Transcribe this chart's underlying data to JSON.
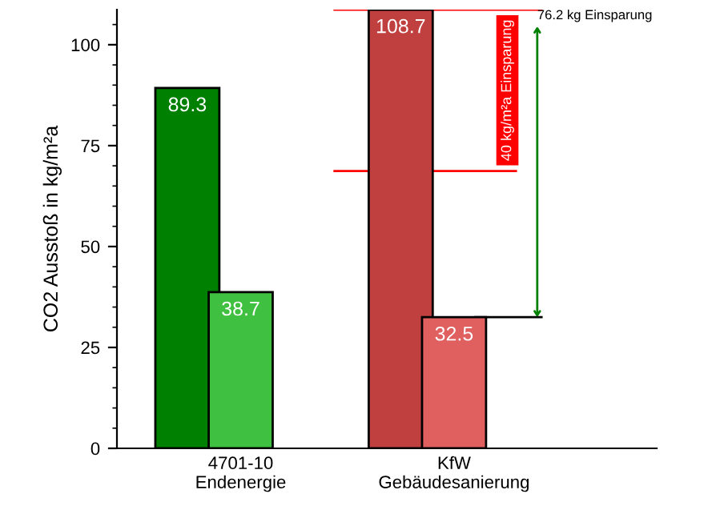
{
  "chart_data": {
    "type": "bar",
    "categories": [
      "4701-10\nEndenergie",
      "KfW\nGebäudesanierung"
    ],
    "series": [
      {
        "colors": [
          "#008000",
          "#c04040"
        ],
        "values": [
          89.3,
          108.7
        ]
      },
      {
        "colors": [
          "#40c040",
          "#e06060"
        ],
        "values": [
          38.7,
          32.5
        ]
      }
    ],
    "ylabel": "CO2 Ausstoß in kg/m²a",
    "ylim": [
      0,
      108.7
    ],
    "yticks": [
      0,
      25,
      50,
      75,
      100
    ],
    "data_labels": true,
    "grid": false,
    "ref_lines": [
      {
        "axis": "y",
        "value": 108.7,
        "color": "#ff0000"
      },
      {
        "axis": "y",
        "value": 68.7,
        "color": "#ff0000"
      },
      {
        "axis": "y",
        "value": 32.5,
        "color": "#000000"
      }
    ],
    "annotations": [
      "40 kg/m²a Einsparung",
      "76.2 kg Einsparung"
    ]
  }
}
